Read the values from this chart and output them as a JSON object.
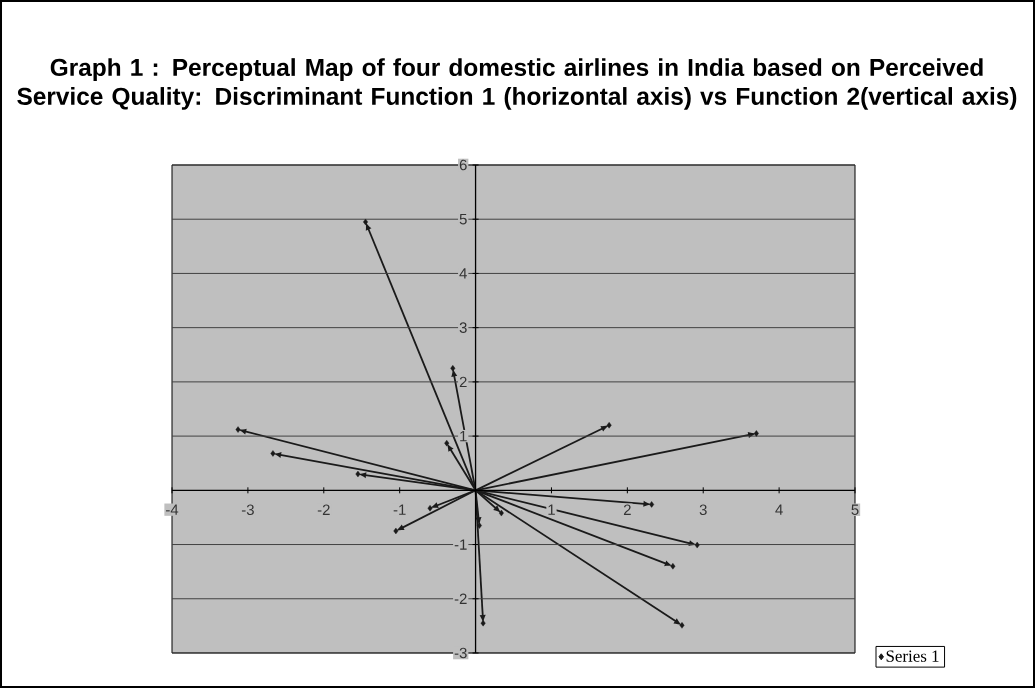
{
  "chart_data": {
    "type": "scatter",
    "title": "Graph 1 : Perceptual Map of four domestic airlines in India based on Perceived Service Quality: Discriminant Function 1 (horizontal axis) vs Function 2(vertical axis)",
    "xlim": [
      -4,
      5
    ],
    "ylim": [
      -3,
      6
    ],
    "xticks": [
      -4,
      -3,
      -2,
      -1,
      1,
      2,
      3,
      4,
      5
    ],
    "yticks": [
      -3,
      -2,
      -1,
      1,
      2,
      3,
      4,
      5,
      6
    ],
    "grid": "y",
    "legend": "bottom right",
    "marker": "diamond",
    "series": [
      {
        "name": "Series 1",
        "color": "#1a1a1a",
        "x": [
          -1.45,
          -0.3,
          -3.13,
          -2.67,
          -1.55,
          -0.38,
          -0.6,
          -1.05,
          0.1,
          1.76,
          3.7,
          2.32,
          2.92,
          2.6,
          2.72,
          0.34,
          0.05
        ],
        "values": [
          4.95,
          2.25,
          1.12,
          0.68,
          0.3,
          0.87,
          -0.33,
          -0.75,
          -2.45,
          1.2,
          1.05,
          -0.26,
          -1.01,
          -1.4,
          -2.49,
          -0.42,
          -0.65
        ]
      }
    ]
  }
}
